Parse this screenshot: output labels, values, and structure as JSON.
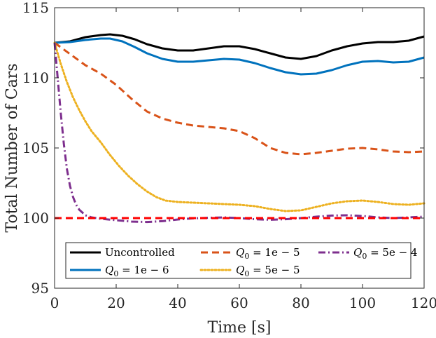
{
  "chart_data": {
    "type": "line",
    "title": "",
    "xlabel": "Time [s]",
    "ylabel": "Total Number of Cars",
    "xlim": [
      0,
      120
    ],
    "ylim": [
      95,
      115
    ],
    "xticks": [
      0,
      20,
      40,
      60,
      80,
      100,
      120
    ],
    "yticks": [
      95,
      100,
      105,
      110,
      115
    ],
    "xtick_labels": [
      "0",
      "20",
      "40",
      "60",
      "80",
      "100",
      "120"
    ],
    "ytick_labels": [
      "95",
      "100",
      "105",
      "110",
      "115"
    ],
    "grid": false,
    "legend_position": "bottom",
    "series": [
      {
        "name": "Uncontrolled",
        "color": "#000000",
        "style": "solid",
        "x": [
          0,
          5,
          10,
          15,
          18,
          22,
          26,
          30,
          35,
          40,
          45,
          50,
          55,
          60,
          65,
          70,
          75,
          80,
          85,
          90,
          95,
          100,
          105,
          110,
          115,
          120
        ],
        "y": [
          112.5,
          112.6,
          112.9,
          113.05,
          113.1,
          113.0,
          112.75,
          112.4,
          112.1,
          111.95,
          111.95,
          112.1,
          112.25,
          112.25,
          112.05,
          111.75,
          111.45,
          111.35,
          111.55,
          111.95,
          112.25,
          112.45,
          112.55,
          112.55,
          112.65,
          112.95
        ]
      },
      {
        "name": "Q_0 = 1e-6",
        "color": "#0072bd",
        "style": "solid",
        "x": [
          0,
          5,
          10,
          15,
          18,
          22,
          26,
          30,
          35,
          40,
          45,
          50,
          55,
          60,
          65,
          70,
          75,
          80,
          85,
          90,
          95,
          100,
          105,
          110,
          115,
          120
        ],
        "y": [
          112.5,
          112.55,
          112.7,
          112.8,
          112.8,
          112.6,
          112.2,
          111.75,
          111.35,
          111.15,
          111.15,
          111.25,
          111.35,
          111.3,
          111.05,
          110.7,
          110.4,
          110.25,
          110.3,
          110.55,
          110.9,
          111.15,
          111.2,
          111.1,
          111.15,
          111.45
        ]
      },
      {
        "name": "Q_0 = 1e-5",
        "color": "#d95319",
        "style": "dash",
        "x": [
          0,
          5,
          10,
          15,
          20,
          25,
          30,
          35,
          40,
          45,
          50,
          55,
          60,
          65,
          70,
          75,
          80,
          85,
          90,
          95,
          100,
          105,
          110,
          115,
          120
        ],
        "y": [
          112.5,
          111.7,
          110.9,
          110.3,
          109.5,
          108.5,
          107.6,
          107.1,
          106.8,
          106.6,
          106.5,
          106.4,
          106.2,
          105.7,
          105.0,
          104.65,
          104.55,
          104.65,
          104.8,
          104.95,
          105.0,
          104.9,
          104.75,
          104.7,
          104.75
        ]
      },
      {
        "name": "Q_0 = 5e-5",
        "color": "#edb120",
        "style": "dot",
        "x": [
          0,
          2,
          4,
          6,
          8,
          10,
          12,
          15,
          18,
          21,
          24,
          27,
          30,
          33,
          36,
          40,
          45,
          50,
          55,
          60,
          65,
          70,
          75,
          80,
          85,
          90,
          95,
          100,
          105,
          110,
          115,
          120
        ],
        "y": [
          112.5,
          111.0,
          109.7,
          108.6,
          107.7,
          106.9,
          106.2,
          105.4,
          104.5,
          103.7,
          103.0,
          102.4,
          101.9,
          101.5,
          101.25,
          101.15,
          101.1,
          101.05,
          101.0,
          100.95,
          100.85,
          100.65,
          100.5,
          100.55,
          100.8,
          101.05,
          101.2,
          101.25,
          101.15,
          101.0,
          100.95,
          101.05
        ]
      },
      {
        "name": "Q_0 = 5e-4",
        "color": "#7e2f8e",
        "style": "dashdot",
        "x": [
          0,
          1,
          2,
          3,
          4,
          5,
          6,
          7,
          8,
          10,
          12,
          15,
          20,
          25,
          30,
          35,
          40,
          45,
          50,
          55,
          60,
          65,
          70,
          75,
          80,
          85,
          90,
          95,
          100,
          105,
          110,
          115,
          120
        ],
        "y": [
          112.5,
          110.0,
          107.5,
          105.3,
          103.5,
          102.3,
          101.5,
          100.95,
          100.6,
          100.2,
          100.05,
          99.95,
          99.85,
          99.75,
          99.72,
          99.78,
          99.9,
          99.98,
          100.02,
          100.05,
          100.0,
          99.92,
          99.88,
          99.92,
          100.0,
          100.1,
          100.18,
          100.2,
          100.15,
          100.05,
          100.0,
          100.05,
          100.1
        ]
      },
      {
        "name": "Reference",
        "color": "#ff0000",
        "style": "dash",
        "legend": false,
        "x": [
          0,
          120
        ],
        "y": [
          100,
          100
        ]
      }
    ]
  },
  "legend": {
    "items": [
      {
        "type": "plain",
        "text": "Uncontrolled",
        "color": "#000000",
        "style": "solid"
      },
      {
        "type": "math",
        "sym": "Q",
        "sub": "0",
        "rhs": " = 1e − 5",
        "color": "#d95319",
        "style": "dash"
      },
      {
        "type": "math",
        "sym": "Q",
        "sub": "0",
        "rhs": " = 5e − 4",
        "color": "#7e2f8e",
        "style": "dashdot"
      },
      {
        "type": "math",
        "sym": "Q",
        "sub": "0",
        "rhs": " = 1e − 6",
        "color": "#0072bd",
        "style": "solid"
      },
      {
        "type": "math",
        "sym": "Q",
        "sub": "0",
        "rhs": " = 5e − 5",
        "color": "#edb120",
        "style": "dot"
      }
    ]
  }
}
